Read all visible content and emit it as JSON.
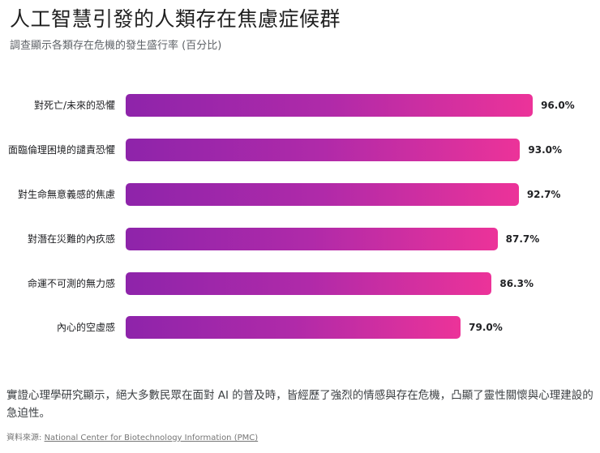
{
  "header": {
    "title": "人工智慧引發的人類存在焦慮症候群",
    "subtitle": "調查顯示各類存在危機的發生盛行率 (百分比)"
  },
  "chart_data": {
    "type": "bar",
    "orientation": "horizontal",
    "title": "人工智慧引發的人類存在焦慮症候群",
    "subtitle": "調查顯示各類存在危機的發生盛行率 (百分比)",
    "xlabel": "",
    "ylabel": "",
    "xlim": [
      0,
      100
    ],
    "grid": false,
    "legend": "none",
    "categories": [
      "對死亡/未來的恐懼",
      "面臨倫理困境的譴責恐懼",
      "對生命無意義感的焦慮",
      "對潛在災難的內疚感",
      "命運不可測的無力感",
      "內心的空虛感"
    ],
    "values": [
      96.0,
      93.0,
      92.7,
      87.7,
      86.3,
      79.0
    ],
    "value_labels": [
      "96.0%",
      "93.0%",
      "92.7%",
      "87.7%",
      "86.3%",
      "79.0%"
    ],
    "colors": {
      "gradient_start": "#8e24aa",
      "gradient_end": "#ec3399"
    }
  },
  "footer": {
    "note": "實證心理學研究顯示，絕大多數民眾在面對 AI 的普及時，皆經歷了強烈的情感與存在危機，凸顯了靈性關懷與心理建設的急迫性。",
    "source_prefix": "資料來源: ",
    "source_link": "National Center for Biotechnology Information (PMC)"
  }
}
